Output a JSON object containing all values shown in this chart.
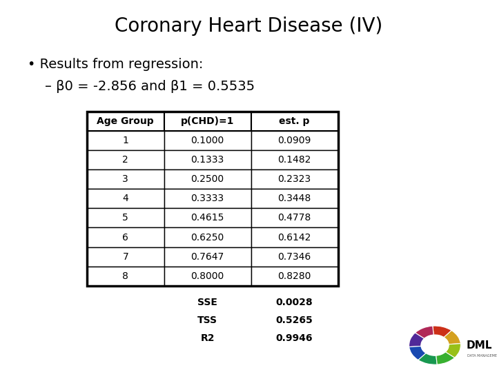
{
  "title": "Coronary Heart Disease (IV)",
  "bullet": "Results from regression:",
  "sub_bullet": "– β0 = -2.856 and β1 = 0.5535",
  "table_headers": [
    "Age Group",
    "p(CHD)=1",
    "est. p"
  ],
  "table_data": [
    [
      "1",
      "0.1000",
      "0.0909"
    ],
    [
      "2",
      "0.1333",
      "0.1482"
    ],
    [
      "3",
      "0.2500",
      "0.2323"
    ],
    [
      "4",
      "0.3333",
      "0.3448"
    ],
    [
      "5",
      "0.4615",
      "0.4778"
    ],
    [
      "6",
      "0.6250",
      "0.6142"
    ],
    [
      "7",
      "0.7647",
      "0.7346"
    ],
    [
      "8",
      "0.8000",
      "0.8280"
    ]
  ],
  "stats_labels": [
    "SSE",
    "TSS",
    "R2"
  ],
  "stats_values": [
    "0.0028",
    "0.5265",
    "0.9946"
  ],
  "bg_color": "#ffffff",
  "text_color": "#000000",
  "title_fontsize": 20,
  "bullet_fontsize": 14,
  "table_fontsize": 10,
  "stats_fontsize": 10,
  "logo_wedge_colors": [
    "#e8c020",
    "#e05020",
    "#c02060",
    "#6030a0",
    "#2060c0",
    "#20a060",
    "#40c040",
    "#a0c820"
  ],
  "logo_inner_colors": [
    "#e05020",
    "#d04090",
    "#3050b0",
    "#30a050",
    "#80b820"
  ]
}
